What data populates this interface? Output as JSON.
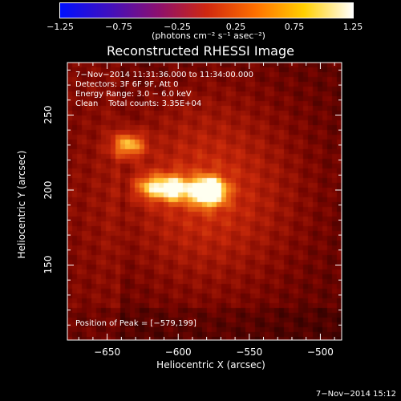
{
  "colorbar": {
    "ticks": [
      "−1.25",
      "−0.75",
      "−0.25",
      "0.25",
      "0.75",
      "1.25"
    ],
    "tick_values": [
      -1.25,
      -0.75,
      -0.25,
      0.25,
      0.75,
      1.25
    ],
    "units": "(photons cm⁻² s⁻¹ asec⁻²)",
    "colors": [
      "#0010ff",
      "#4010c0",
      "#8c1070",
      "#d02810",
      "#ff7000",
      "#ffd000",
      "#ffffff"
    ]
  },
  "chart_data": {
    "type": "heatmap",
    "title": "Reconstructed RHESSI Image",
    "xlabel": "Heliocentric X (arcsec)",
    "ylabel": "Heliocentric Y (arcsec)",
    "xlim": [
      -678,
      -485
    ],
    "ylim": [
      100,
      285
    ],
    "xticks": [
      -650,
      -600,
      -550,
      -500
    ],
    "yticks": [
      150,
      200,
      250
    ],
    "xtick_labels": [
      "−650",
      "−600",
      "−550",
      "−500"
    ],
    "ytick_labels": [
      "150",
      "200",
      "250"
    ],
    "peak": {
      "x": -579,
      "y": 199
    },
    "sources": [
      {
        "x": -579,
        "y": 199,
        "amp": 1.0
      },
      {
        "x": -603,
        "y": 201,
        "amp": 0.6
      },
      {
        "x": -620,
        "y": 202,
        "amp": 0.45
      },
      {
        "x": -635,
        "y": 230,
        "amp": 0.55
      }
    ]
  },
  "annotations": {
    "time": "7−Nov−2014 11:31:36.000 to 11:34:00.000",
    "detectors": "Detectors: 3F 6F 9F, Att 0",
    "energy": "Energy Range: 3.0 − 6.0 keV",
    "method": "Clean    Total counts: 3.35E+04",
    "peak": "Position of Peak = [−579,199]"
  },
  "timestamp": "7−Nov−2014 15:12"
}
